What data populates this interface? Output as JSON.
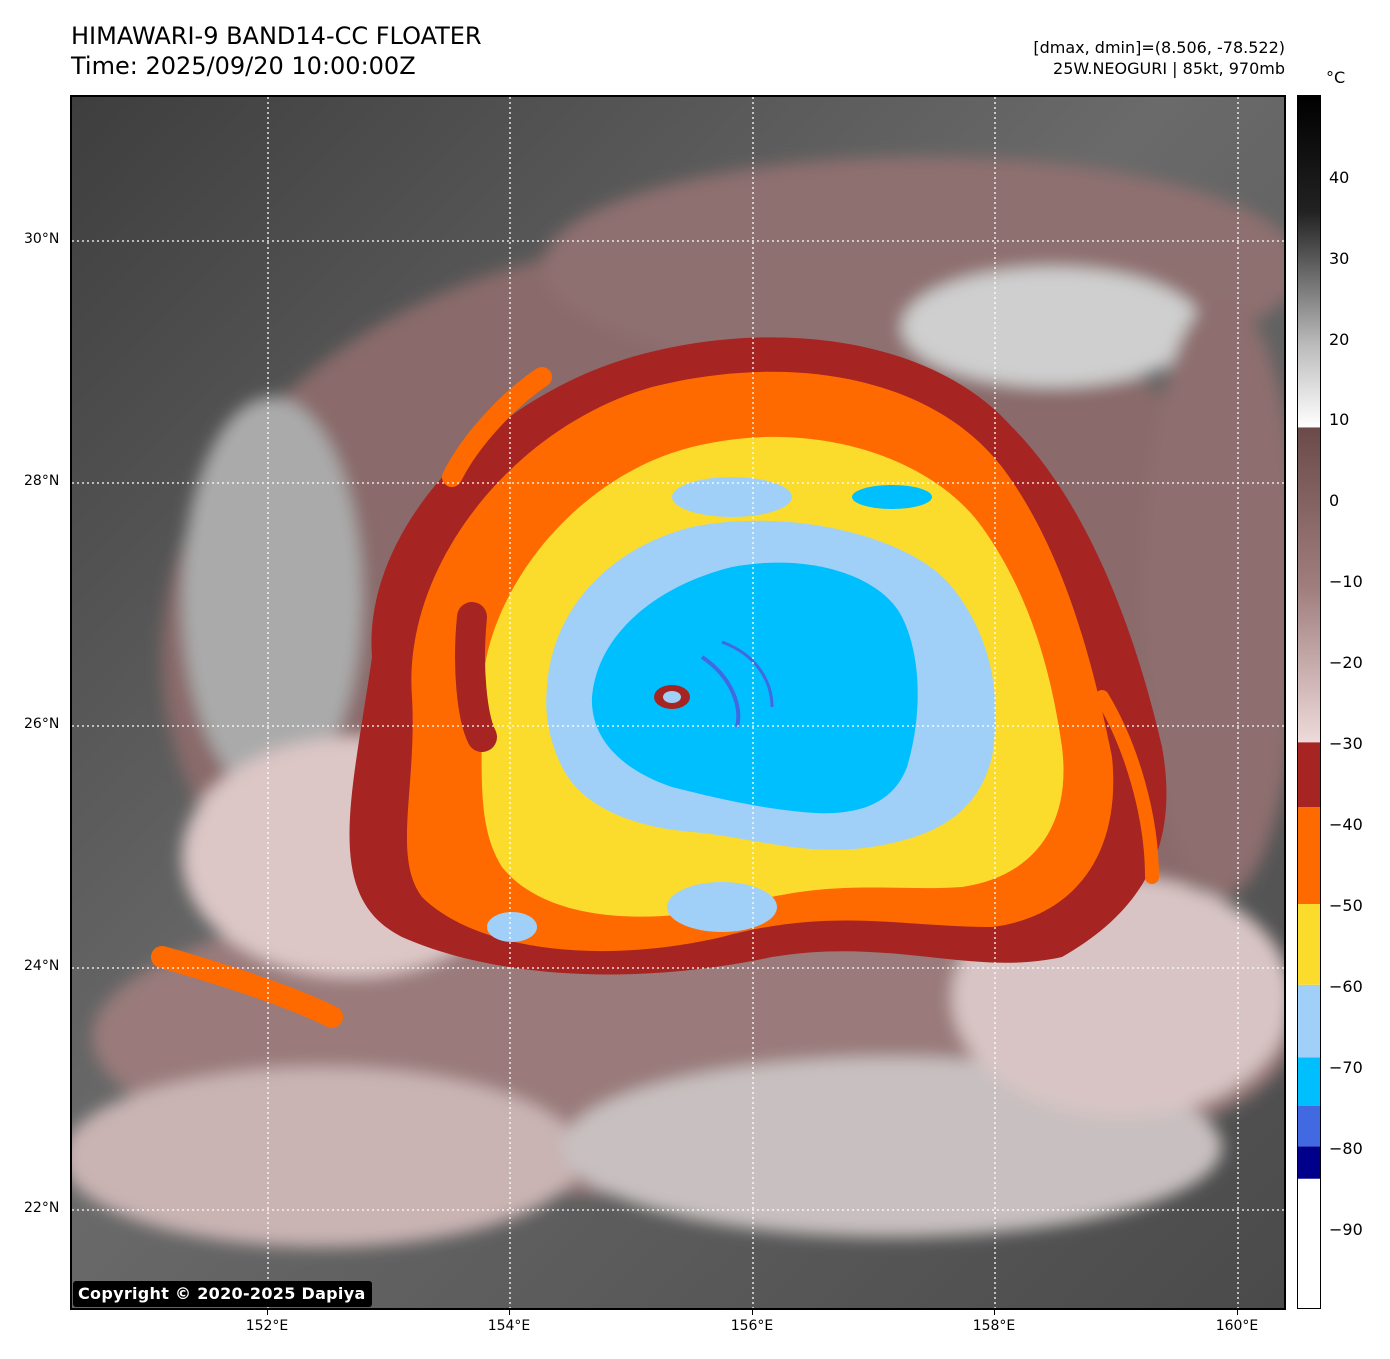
{
  "header": {
    "title_line1": "HIMAWARI-9 BAND14-CC FLOATER",
    "title_line2": "Time: 2025/09/20 10:00:00Z",
    "range_text": "[dmax, dmin]=(8.506, -78.522)",
    "storm_text": "25W.NEOGURI | 85kt, 970mb"
  },
  "map": {
    "lat_labels": [
      "30°N",
      "28°N",
      "26°N",
      "24°N",
      "22°N"
    ],
    "lon_labels": [
      "152°E",
      "154°E",
      "156°E",
      "158°E",
      "160°E"
    ],
    "copyright": "Copyright © 2020-2025 Dapiya"
  },
  "colorbar": {
    "unit": "°C",
    "labels": [
      "40",
      "30",
      "20",
      "10",
      "0",
      "−10",
      "−20",
      "−30",
      "−40",
      "−50",
      "−60",
      "−70",
      "−80",
      "−90"
    ],
    "range": [
      -100,
      50
    ],
    "bands": [
      {
        "from": -100,
        "to": -84,
        "color": "#ffffff"
      },
      {
        "from": -84,
        "to": -80,
        "color": "#00008b"
      },
      {
        "from": -80,
        "to": -75,
        "color": "#4169e1"
      },
      {
        "from": -75,
        "to": -69,
        "color": "#00bfff"
      },
      {
        "from": -69,
        "to": -60,
        "color": "#a0d0f8"
      },
      {
        "from": -60,
        "to": -50,
        "color": "#fbdc2c"
      },
      {
        "from": -50,
        "to": -38,
        "color": "#ff6a00"
      },
      {
        "from": -38,
        "to": -30,
        "color": "#a62422"
      }
    ]
  }
}
